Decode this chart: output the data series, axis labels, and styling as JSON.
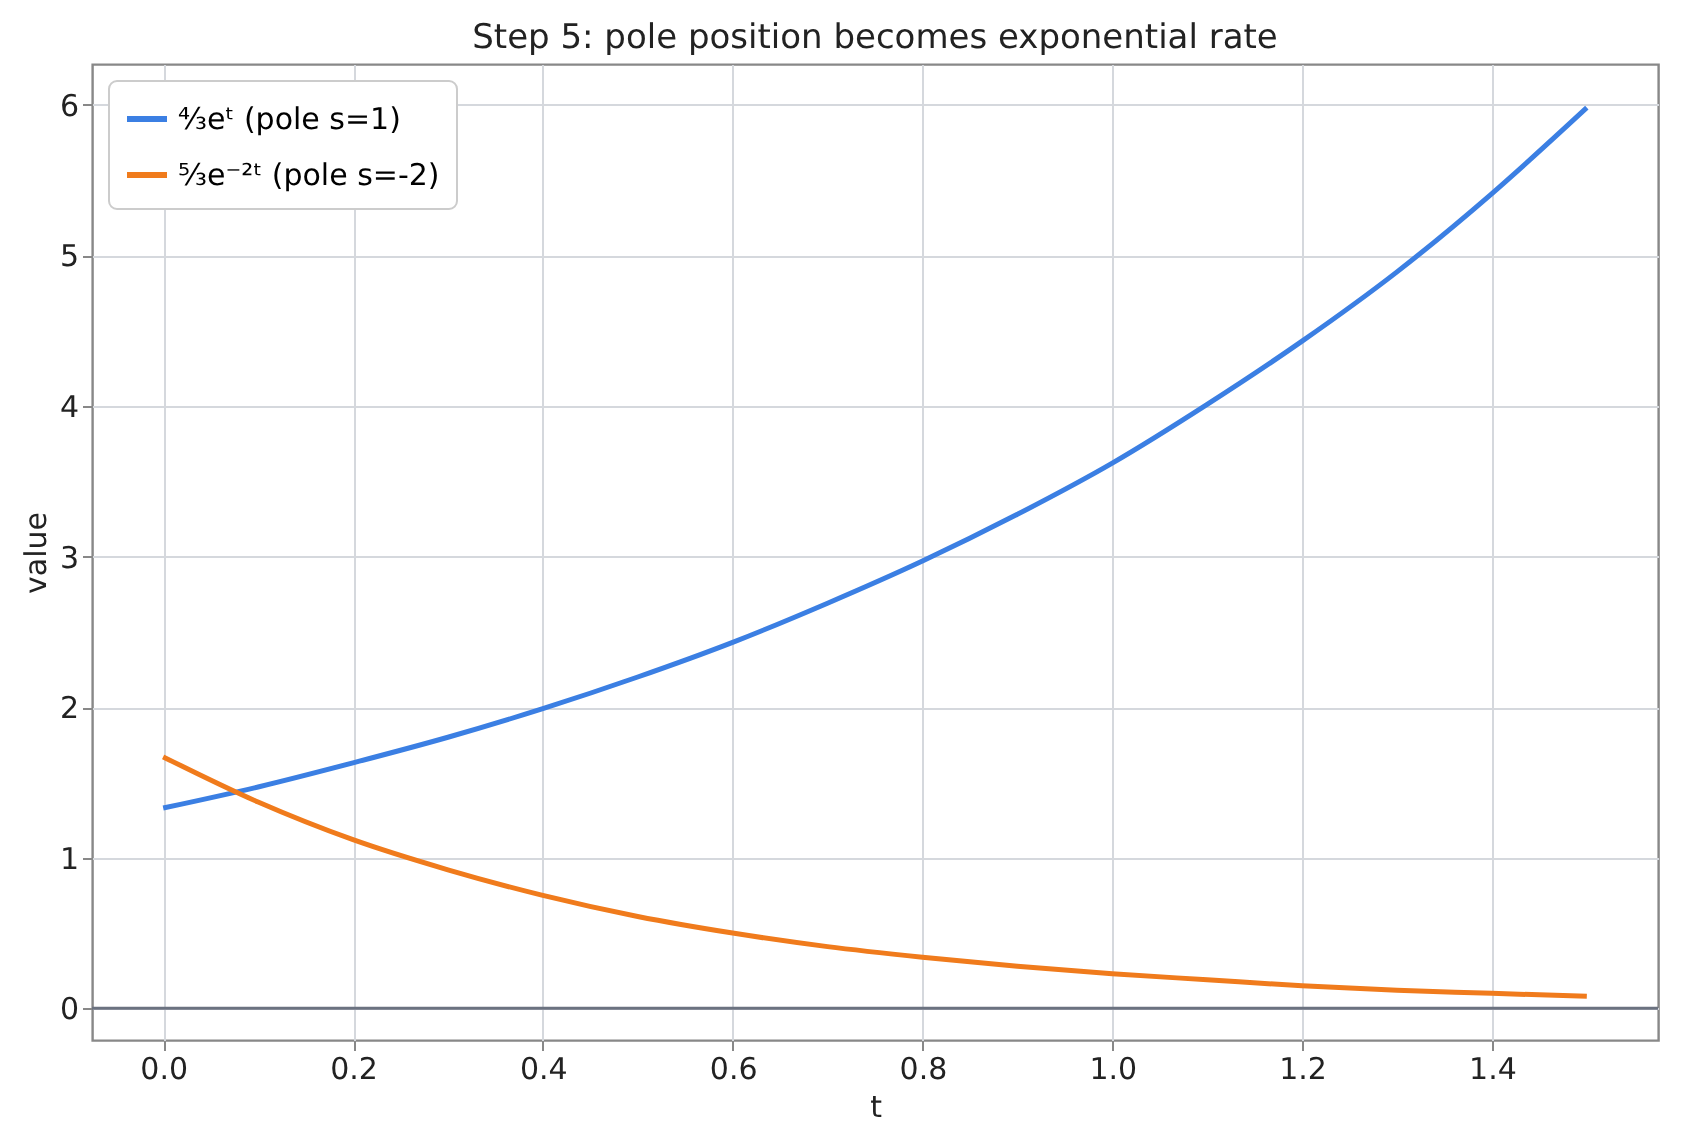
{
  "chart_data": {
    "type": "line",
    "title": "Step 5: pole position becomes exponential rate",
    "xlabel": "t",
    "ylabel": "value",
    "x": [
      0,
      0.1,
      0.2,
      0.3,
      0.4,
      0.5,
      0.6,
      0.7,
      0.8,
      0.9,
      1.0,
      1.1,
      1.2,
      1.3,
      1.4,
      1.5
    ],
    "series": [
      {
        "name": "⁴⁄₃eᵗ (pole s=1)",
        "color": "#3b7fe3",
        "values": [
          1.33,
          1.47,
          1.63,
          1.8,
          1.99,
          2.2,
          2.43,
          2.69,
          2.97,
          3.28,
          3.62,
          4.01,
          4.43,
          4.89,
          5.41,
          5.98
        ]
      },
      {
        "name": "⁵⁄₃e⁻²ᵗ (pole s=-2)",
        "color": "#f07b1c",
        "values": [
          1.67,
          1.37,
          1.12,
          0.92,
          0.75,
          0.61,
          0.5,
          0.41,
          0.34,
          0.28,
          0.23,
          0.19,
          0.15,
          0.12,
          0.1,
          0.08
        ]
      }
    ],
    "xlim": [
      -0.075,
      1.575
    ],
    "ylim": [
      -0.21,
      6.27
    ],
    "xticks": [
      {
        "value": 0,
        "label": "0.0"
      },
      {
        "value": 0.2,
        "label": "0.2"
      },
      {
        "value": 0.4,
        "label": "0.4"
      },
      {
        "value": 0.6,
        "label": "0.6"
      },
      {
        "value": 0.8,
        "label": "0.8"
      },
      {
        "value": 1.0,
        "label": "1.0"
      },
      {
        "value": 1.2,
        "label": "1.2"
      },
      {
        "value": 1.4,
        "label": "1.4"
      }
    ],
    "yticks": [
      0,
      1,
      2,
      3,
      4,
      5,
      6
    ],
    "ref_lines": [
      {
        "axis": "y",
        "value": 0,
        "color": "#6b7280"
      }
    ],
    "grid": true,
    "legend": "top left",
    "line_style": "solid"
  }
}
